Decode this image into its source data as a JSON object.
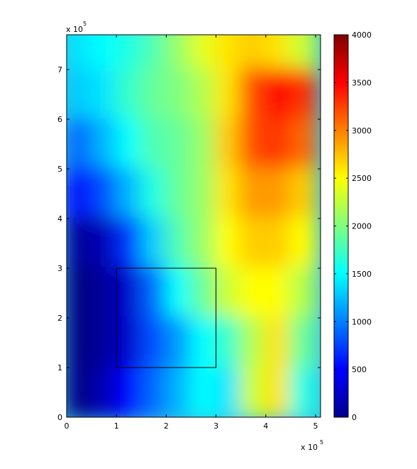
{
  "chart_data": {
    "type": "heatmap",
    "title": "",
    "xlabel": "",
    "ylabel": "",
    "xlim": [
      0,
      5.1
    ],
    "ylim": [
      0,
      7.7
    ],
    "x_ticks": [
      "0",
      "1",
      "2",
      "3",
      "4",
      "5"
    ],
    "y_ticks": [
      "0",
      "1",
      "2",
      "3",
      "4",
      "5",
      "6",
      "7"
    ],
    "x_exponent": "x 10",
    "x_exponent_power": "5",
    "y_exponent": "x 10",
    "y_exponent_power": "5",
    "colorbar": {
      "colormap": "jet",
      "range": [
        0,
        4000
      ],
      "ticks": [
        "0",
        "500",
        "1000",
        "1500",
        "2000",
        "2500",
        "3000",
        "3500",
        "4000"
      ]
    },
    "rectangle": {
      "x0": 1,
      "y0": 1,
      "x1": 3,
      "y1": 3
    },
    "elevation_grid": {
      "note_rows_top_to_bottom": true,
      "x_centers": [
        0.25,
        0.75,
        1.25,
        1.75,
        2.25,
        2.75,
        3.25,
        3.75,
        4.25,
        4.75
      ],
      "y_centers": [
        7.5,
        6.5,
        5.5,
        4.5,
        3.5,
        2.5,
        1.5,
        0.5
      ],
      "values": [
        [
          1400,
          1500,
          1600,
          1800,
          2100,
          2400,
          2600,
          2700,
          2600,
          2300
        ],
        [
          1300,
          1400,
          1700,
          1900,
          2000,
          2200,
          2600,
          3200,
          3500,
          3300
        ],
        [
          900,
          1200,
          1500,
          1800,
          1900,
          2100,
          2700,
          3200,
          3300,
          3100
        ],
        [
          500,
          800,
          1200,
          1600,
          1900,
          2100,
          2600,
          2900,
          2900,
          2700
        ],
        [
          100,
          200,
          700,
          1300,
          1800,
          2100,
          2500,
          2700,
          2700,
          2500
        ],
        [
          0,
          100,
          300,
          900,
          1500,
          1900,
          2300,
          2500,
          2500,
          2200
        ],
        [
          0,
          100,
          300,
          800,
          1100,
          1500,
          1700,
          2200,
          2600,
          1900
        ],
        [
          0,
          200,
          500,
          900,
          1200,
          1500,
          1400,
          2300,
          2600,
          1600
        ]
      ]
    }
  }
}
